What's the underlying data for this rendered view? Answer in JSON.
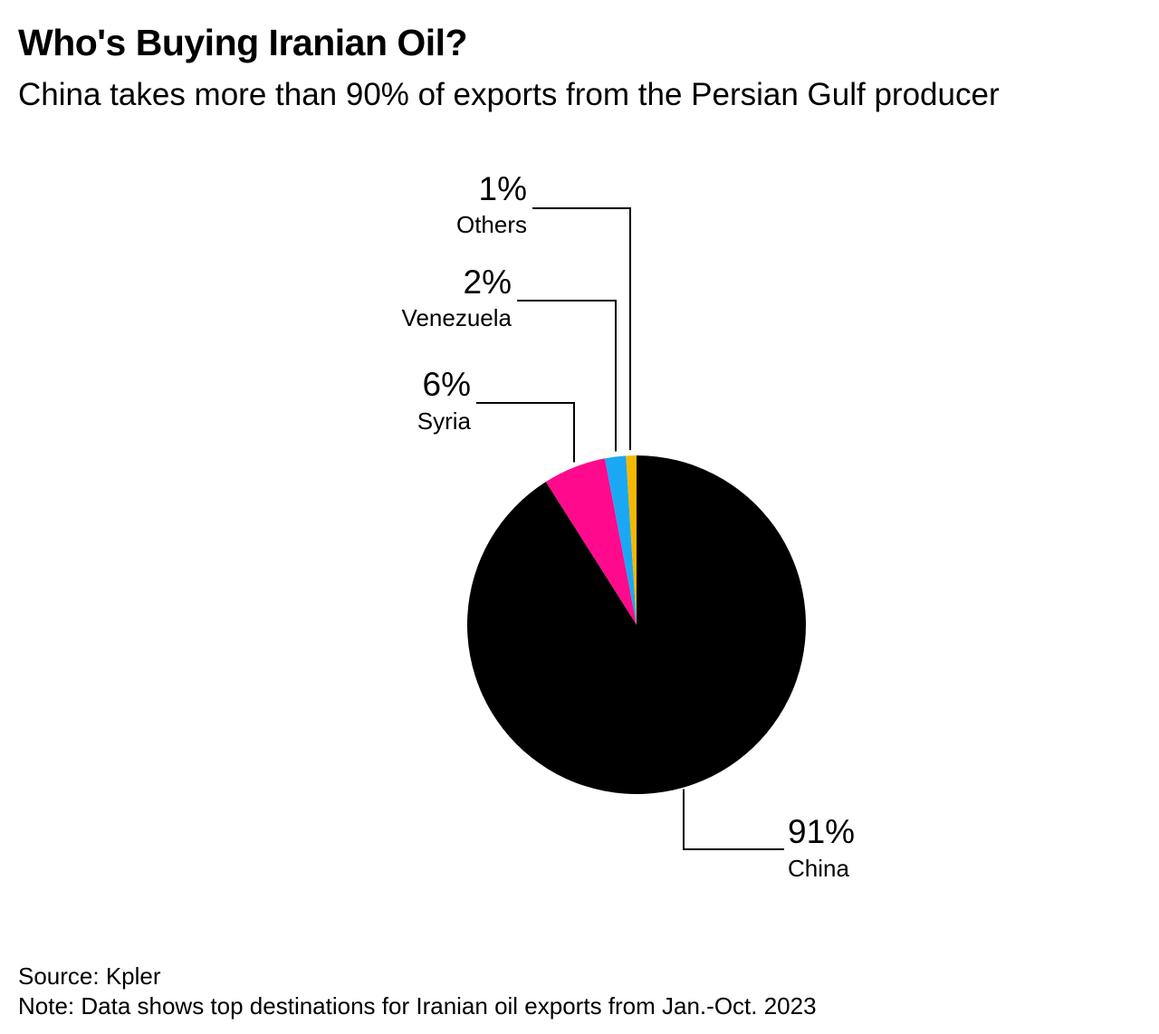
{
  "header": {
    "title": "Who's Buying Iranian Oil?",
    "subtitle": "China takes more than 90% of exports from the Persian Gulf producer"
  },
  "footer": {
    "source": "Source: Kpler",
    "note": "Note: Data shows top destinations for Iranian oil exports from Jan.-Oct. 2023"
  },
  "chart_data": {
    "type": "pie",
    "title": "Who's Buying Iranian Oil?",
    "subtitle": "China takes more than 90% of exports from the Persian Gulf producer",
    "unit": "%",
    "start": "12 o'clock, clockwise",
    "slices": [
      {
        "name": "China",
        "value": 91,
        "label": "91%",
        "color": "#000000"
      },
      {
        "name": "Syria",
        "value": 6,
        "label": "6%",
        "color": "#FF0A8C"
      },
      {
        "name": "Venezuela",
        "value": 2,
        "label": "2%",
        "color": "#1AA8F5"
      },
      {
        "name": "Others",
        "value": 1,
        "label": "1%",
        "color": "#F5B800"
      }
    ]
  }
}
